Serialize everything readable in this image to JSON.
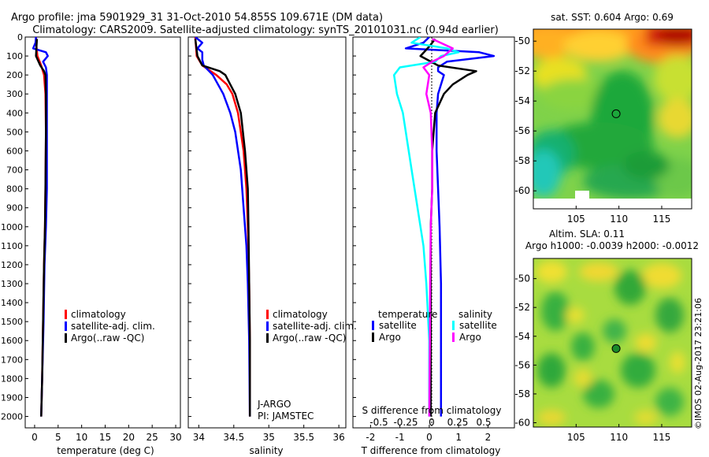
{
  "title_line1": "Argo profile: jma 5901929_31 31-Oct-2010 54.855S 109.671E (DM data)",
  "title_line2": "Climatology: CARS2009. Satellite-adjusted climatology: synTS_20101031.nc (0.94d earlier)",
  "watermark": "©IMOS 02-Aug-2017 23:21:06",
  "colors": {
    "climatology": "#ff0000",
    "satellite": "#0000ff",
    "argo": "#000000",
    "sal_satellite": "#00ffff",
    "sal_argo": "#ff00ff"
  },
  "chart_data": [
    {
      "type": "line",
      "id": "temperature",
      "xlabel": "temperature (deg C)",
      "ylabel": "",
      "xlim": [
        -2,
        31
      ],
      "ylim": [
        2060,
        0
      ],
      "x_ticks": [
        0,
        5,
        10,
        15,
        20,
        25,
        30
      ],
      "x_ticklabels": [
        "0",
        "5",
        "10",
        "15",
        "20",
        "25",
        "30"
      ],
      "y_ticks": [
        0,
        100,
        200,
        300,
        400,
        500,
        600,
        700,
        800,
        900,
        1000,
        1100,
        1200,
        1300,
        1400,
        1500,
        1600,
        1700,
        1800,
        1900,
        2000
      ],
      "legend": [
        "climatology",
        "satellite-adj. clim.",
        "Argo(..raw -QC)"
      ],
      "series": [
        {
          "name": "climatology",
          "color": "#ff0000",
          "depth": [
            0,
            50,
            100,
            150,
            200,
            300,
            500,
            800,
            1000,
            1200,
            1500,
            1800,
            2000
          ],
          "values": [
            0.3,
            0.4,
            0.6,
            1.4,
            2.0,
            2.3,
            2.4,
            2.3,
            2.2,
            2.0,
            1.8,
            1.6,
            1.4
          ]
        },
        {
          "name": "satellite-adj. clim.",
          "color": "#0000ff",
          "depth": [
            0,
            30,
            60,
            80,
            100,
            130,
            160,
            200,
            300,
            500,
            800,
            1000,
            1200,
            1500,
            1800,
            2000
          ],
          "values": [
            0.3,
            0.2,
            -0.3,
            2.4,
            2.8,
            1.8,
            2.4,
            2.6,
            2.6,
            2.6,
            2.6,
            2.4,
            2.1,
            1.9,
            1.6,
            1.4
          ]
        },
        {
          "name": "Argo(..raw -QC)",
          "color": "#000000",
          "depth": [
            10,
            50,
            100,
            150,
            180,
            200,
            300,
            500,
            800,
            1000,
            1200,
            1500,
            1800,
            2000
          ],
          "values": [
            0.5,
            0.4,
            0.3,
            1.2,
            2.0,
            2.3,
            2.4,
            2.4,
            2.3,
            2.2,
            2.0,
            1.8,
            1.6,
            1.4
          ]
        }
      ]
    },
    {
      "type": "line",
      "id": "salinity",
      "xlabel": "salinity",
      "xlim": [
        33.85,
        36.1
      ],
      "ylim": [
        2060,
        0
      ],
      "x_ticks": [
        34,
        34.5,
        35,
        35.5,
        36
      ],
      "x_ticklabels": [
        "34",
        "34.5",
        "35",
        "35.5",
        "36"
      ],
      "legend": [
        "climatology",
        "satellite-adj. clim.",
        "Argo(..raw -QC)"
      ],
      "annotation_line1": "J-ARGO",
      "annotation_line2": "PI: JAMSTEC",
      "series": [
        {
          "name": "climatology",
          "color": "#ff0000",
          "depth": [
            0,
            100,
            150,
            200,
            250,
            300,
            400,
            600,
            800,
            1000,
            1300,
            1600,
            2000
          ],
          "values": [
            33.95,
            33.97,
            34.05,
            34.25,
            34.4,
            34.48,
            34.56,
            34.64,
            34.68,
            34.7,
            34.72,
            34.73,
            34.73
          ]
        },
        {
          "name": "satellite-adj. clim.",
          "color": "#0000ff",
          "depth": [
            0,
            30,
            60,
            80,
            120,
            150,
            200,
            300,
            400,
            500,
            700,
            900,
            1100,
            1300,
            1600,
            2000
          ],
          "values": [
            33.95,
            34.05,
            33.98,
            34.05,
            34.05,
            34.07,
            34.2,
            34.35,
            34.45,
            34.52,
            34.6,
            34.64,
            34.68,
            34.7,
            34.72,
            34.73
          ]
        },
        {
          "name": "Argo(..raw -QC)",
          "color": "#000000",
          "depth": [
            10,
            100,
            150,
            180,
            200,
            250,
            300,
            400,
            600,
            800,
            1000,
            1300,
            1600,
            2000
          ],
          "values": [
            33.95,
            33.98,
            34.05,
            34.3,
            34.38,
            34.45,
            34.52,
            34.6,
            34.66,
            34.7,
            34.71,
            34.72,
            34.73,
            34.73
          ]
        }
      ]
    },
    {
      "type": "line",
      "id": "difference",
      "xlabel": "T difference from climatology",
      "x2label": "S difference from climatology",
      "xlim": [
        -2.6,
        2.9
      ],
      "ylim": [
        2060,
        0
      ],
      "x_ticks": [
        -2,
        -1,
        0,
        1,
        2
      ],
      "x_ticklabels": [
        "-2",
        "-1",
        "0",
        "1",
        "2"
      ],
      "x2_ticklabels": [
        "-0.5",
        "-0.25",
        "0",
        "0.25",
        "0.5"
      ],
      "legend_temp_title": "temperature",
      "legend_sal_title": "salinity",
      "legend_satellite": "satellite",
      "legend_argo": "Argo",
      "series": [
        {
          "name": "temperature satellite",
          "color": "#0000ff",
          "depth": [
            0,
            30,
            60,
            80,
            100,
            130,
            160,
            180,
            200,
            250,
            300,
            400,
            600,
            800,
            1000,
            1300,
            1600,
            2000
          ],
          "values": [
            0.0,
            -0.2,
            -0.8,
            1.7,
            2.2,
            0.6,
            0.3,
            0.3,
            0.5,
            0.4,
            0.3,
            0.25,
            0.25,
            0.3,
            0.35,
            0.4,
            0.4,
            0.4
          ]
        },
        {
          "name": "temperature Argo",
          "color": "#000000",
          "depth": [
            10,
            50,
            100,
            150,
            180,
            200,
            250,
            300,
            400,
            600,
            800,
            1000,
            1300,
            1600,
            2000
          ],
          "values": [
            0.2,
            0.0,
            -0.3,
            0.3,
            1.6,
            1.3,
            0.8,
            0.5,
            0.2,
            0.1,
            0.1,
            0.05,
            0.05,
            0.05,
            0.05
          ]
        },
        {
          "name": "salinity satellite",
          "color": "#00ffff",
          "depth": [
            0,
            30,
            60,
            80,
            100,
            130,
            160,
            200,
            300,
            400,
            500,
            700,
            900,
            1100,
            1300,
            1600,
            2000
          ],
          "values": [
            -0.3,
            -0.6,
            0.6,
            1.0,
            0.4,
            0.2,
            -1.0,
            -1.2,
            -1.1,
            -0.9,
            -0.8,
            -0.6,
            -0.4,
            -0.2,
            -0.1,
            0.0,
            0.0
          ]
        },
        {
          "name": "salinity Argo",
          "color": "#ff00ff",
          "depth": [
            10,
            60,
            100,
            130,
            160,
            200,
            300,
            400,
            600,
            800,
            1000,
            1300,
            1600,
            2000
          ],
          "values": [
            0.1,
            0.8,
            0.5,
            0.1,
            -0.2,
            0.0,
            -0.1,
            0.05,
            0.1,
            0.1,
            0.05,
            0.03,
            0.02,
            0.0
          ]
        }
      ]
    },
    {
      "type": "heatmap",
      "id": "sst_map",
      "title": "sat. SST: 0.604 Argo: 0.69",
      "x_ticklabels": [
        "105",
        "110",
        "115"
      ],
      "y_ticklabels": [
        "-50",
        "-52",
        "-54",
        "-56",
        "-58",
        "-60"
      ],
      "xlim": [
        100,
        118.5
      ],
      "ylim": [
        -61.2,
        -49.2
      ],
      "marker": {
        "lon": 109.671,
        "lat": -54.855
      }
    },
    {
      "type": "heatmap",
      "id": "sla_map",
      "title_line1": "Altim. SLA: 0.11",
      "title_line2": "Argo h1000: -0.0039 h2000: -0.0012",
      "x_ticklabels": [
        "105",
        "110",
        "115"
      ],
      "y_ticklabels": [
        "-50",
        "-52",
        "-54",
        "-56",
        "-58",
        "-60"
      ],
      "xlim": [
        100,
        118.5
      ],
      "ylim": [
        -60.3,
        -48.6
      ],
      "marker": {
        "lon": 109.671,
        "lat": -54.855
      }
    }
  ]
}
